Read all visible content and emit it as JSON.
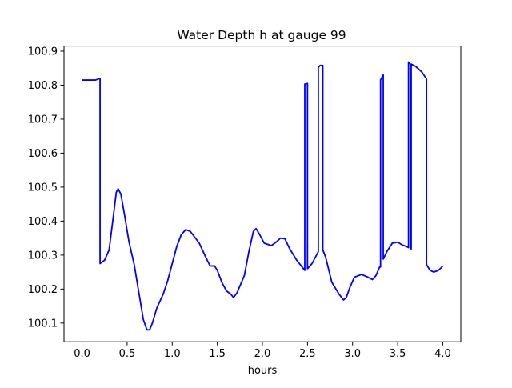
{
  "chart_data": {
    "type": "line",
    "title": "Water Depth h at gauge 99",
    "xlabel": "hours",
    "ylabel": "",
    "xlim": [
      -0.2,
      4.2
    ],
    "ylim": [
      100.045,
      100.915
    ],
    "x_ticks": [
      0.0,
      0.5,
      1.0,
      1.5,
      2.0,
      2.5,
      3.0,
      3.5,
      4.0
    ],
    "x_tick_labels": [
      "0.0",
      "0.5",
      "1.0",
      "1.5",
      "2.0",
      "2.5",
      "3.0",
      "3.5",
      "4.0"
    ],
    "y_ticks": [
      100.1,
      100.2,
      100.3,
      100.4,
      100.5,
      100.6,
      100.7,
      100.8,
      100.9
    ],
    "y_tick_labels": [
      "100.1",
      "100.2",
      "100.3",
      "100.4",
      "100.5",
      "100.6",
      "100.7",
      "100.8",
      "100.9"
    ],
    "grid": false,
    "legend": "none",
    "series": [
      {
        "color": "#0000ff",
        "points": [
          [
            0.0,
            100.815
          ],
          [
            0.1,
            100.815
          ],
          [
            0.15,
            100.815
          ],
          [
            0.2,
            100.82
          ],
          [
            0.2,
            100.275
          ],
          [
            0.25,
            100.285
          ],
          [
            0.3,
            100.315
          ],
          [
            0.35,
            100.42
          ],
          [
            0.38,
            100.485
          ],
          [
            0.4,
            100.495
          ],
          [
            0.43,
            100.48
          ],
          [
            0.47,
            100.42
          ],
          [
            0.52,
            100.34
          ],
          [
            0.58,
            100.27
          ],
          [
            0.63,
            100.19
          ],
          [
            0.68,
            100.11
          ],
          [
            0.72,
            100.08
          ],
          [
            0.75,
            100.08
          ],
          [
            0.78,
            100.1
          ],
          [
            0.83,
            100.145
          ],
          [
            0.9,
            100.185
          ],
          [
            0.95,
            100.225
          ],
          [
            1.0,
            100.275
          ],
          [
            1.05,
            100.325
          ],
          [
            1.1,
            100.36
          ],
          [
            1.15,
            100.375
          ],
          [
            1.2,
            100.37
          ],
          [
            1.3,
            100.335
          ],
          [
            1.37,
            100.295
          ],
          [
            1.42,
            100.268
          ],
          [
            1.47,
            100.268
          ],
          [
            1.5,
            100.255
          ],
          [
            1.55,
            100.22
          ],
          [
            1.6,
            100.195
          ],
          [
            1.65,
            100.185
          ],
          [
            1.68,
            100.175
          ],
          [
            1.72,
            100.19
          ],
          [
            1.8,
            100.24
          ],
          [
            1.85,
            100.31
          ],
          [
            1.9,
            100.37
          ],
          [
            1.93,
            100.378
          ],
          [
            1.97,
            100.36
          ],
          [
            2.02,
            100.335
          ],
          [
            2.1,
            100.328
          ],
          [
            2.17,
            100.342
          ],
          [
            2.2,
            100.35
          ],
          [
            2.25,
            100.348
          ],
          [
            2.3,
            100.32
          ],
          [
            2.38,
            100.285
          ],
          [
            2.44,
            100.265
          ],
          [
            2.47,
            100.255
          ],
          [
            2.47,
            100.803
          ],
          [
            2.5,
            100.805
          ],
          [
            2.5,
            100.26
          ],
          [
            2.55,
            100.275
          ],
          [
            2.62,
            100.31
          ],
          [
            2.62,
            100.852
          ],
          [
            2.64,
            100.858
          ],
          [
            2.67,
            100.858
          ],
          [
            2.67,
            100.315
          ],
          [
            2.7,
            100.295
          ],
          [
            2.77,
            100.22
          ],
          [
            2.85,
            100.185
          ],
          [
            2.9,
            100.168
          ],
          [
            2.93,
            100.175
          ],
          [
            2.97,
            100.205
          ],
          [
            3.02,
            100.235
          ],
          [
            3.1,
            100.243
          ],
          [
            3.17,
            100.235
          ],
          [
            3.22,
            100.228
          ],
          [
            3.26,
            100.24
          ],
          [
            3.3,
            100.265
          ],
          [
            3.31,
            100.265
          ],
          [
            3.31,
            100.815
          ],
          [
            3.34,
            100.83
          ],
          [
            3.34,
            100.288
          ],
          [
            3.38,
            100.31
          ],
          [
            3.44,
            100.335
          ],
          [
            3.5,
            100.338
          ],
          [
            3.55,
            100.33
          ],
          [
            3.6,
            100.325
          ],
          [
            3.62,
            100.322
          ],
          [
            3.62,
            100.868
          ],
          [
            3.64,
            100.862
          ],
          [
            3.64,
            100.32
          ],
          [
            3.65,
            100.318
          ],
          [
            3.65,
            100.862
          ],
          [
            3.7,
            100.855
          ],
          [
            3.77,
            100.838
          ],
          [
            3.82,
            100.818
          ],
          [
            3.82,
            100.272
          ],
          [
            3.86,
            100.255
          ],
          [
            3.9,
            100.25
          ],
          [
            3.95,
            100.255
          ],
          [
            3.98,
            100.262
          ],
          [
            4.0,
            100.268
          ]
        ]
      }
    ]
  }
}
